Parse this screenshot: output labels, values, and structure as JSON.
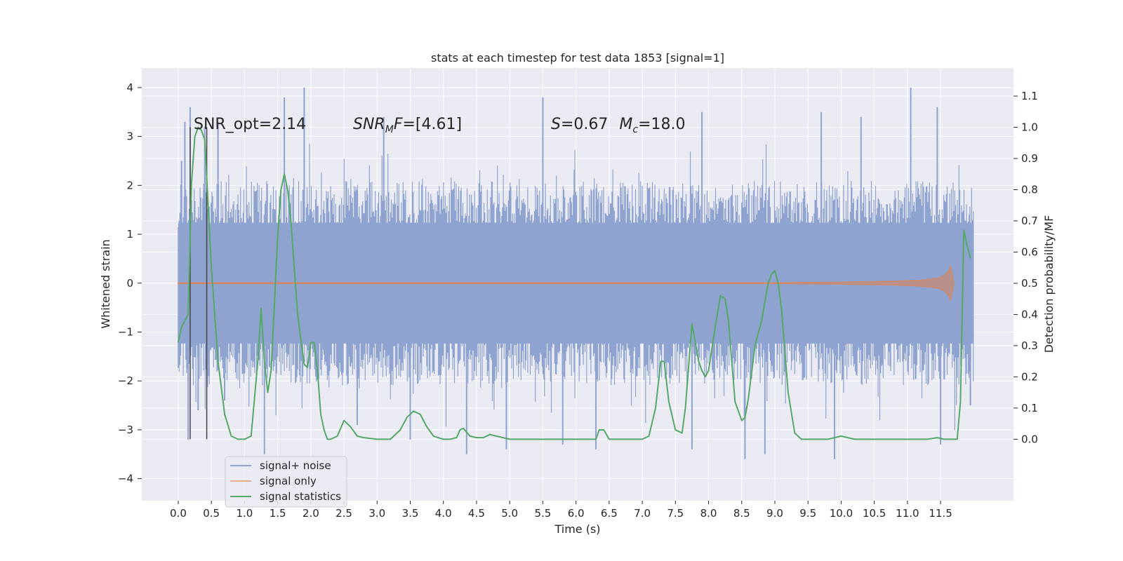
{
  "chart_data": {
    "type": "line",
    "title": "stats at each timestep for test data 1853 [signal=1]",
    "xlabel": "Time (s)",
    "ylabel_left": "Whitened strain",
    "ylabel_right": "Detection probability/MF",
    "xlim": [
      -0.55,
      12.6
    ],
    "ylim_left": [
      -4.45,
      4.4
    ],
    "ylim_right": [
      -0.197,
      1.19
    ],
    "x_ticks": [
      "0.0",
      "0.5",
      "1.0",
      "1.5",
      "2.0",
      "2.5",
      "3.0",
      "3.5",
      "4.0",
      "4.5",
      "5.0",
      "5.5",
      "6.0",
      "6.5",
      "7.0",
      "7.5",
      "8.0",
      "8.5",
      "9.0",
      "9.5",
      "10.0",
      "10.5",
      "11.0",
      "11.5"
    ],
    "y_ticks_left": [
      "4",
      "3",
      "2",
      "1",
      "0",
      "−1",
      "−2",
      "−3",
      "−4"
    ],
    "y_ticks_right": [
      "1.1",
      "1.0",
      "0.9",
      "0.8",
      "0.7",
      "0.6",
      "0.5",
      "0.4",
      "0.3",
      "0.2",
      "0.1",
      "0.0"
    ],
    "grid": true,
    "legend_placement": "lower-left",
    "annotations": {
      "snr_opt": "SNR_opt=2.14",
      "snr_mf_base": "SNR",
      "snr_mf_sub": "M",
      "snr_mf_rest": "F=[4.61]",
      "s_label": "S",
      "s_value": "=0.67",
      "mc_label": "M",
      "mc_sub": "c",
      "mc_value": "=18.0"
    },
    "vertical_markers_x": [
      0.18,
      0.43
    ],
    "series": [
      {
        "name": "signal+ noise",
        "color": "#8ea3cf",
        "x_range": [
          0.0,
          12.0
        ],
        "envelope_upper": 1.9,
        "envelope_lower": -1.9,
        "spikes": [
          [
            0.05,
            2.5
          ],
          [
            0.1,
            3.3
          ],
          [
            0.18,
            3.6
          ],
          [
            0.4,
            3.2
          ],
          [
            0.6,
            3.3
          ],
          [
            1.6,
            3.8
          ],
          [
            1.9,
            4.0
          ],
          [
            3.1,
            3.4
          ],
          [
            5.5,
            3.8
          ],
          [
            7.9,
            3.5
          ],
          [
            9.7,
            3.5
          ],
          [
            10.3,
            3.4
          ],
          [
            11.05,
            4.0
          ],
          [
            11.45,
            3.6
          ],
          [
            0.15,
            -3.2
          ],
          [
            0.3,
            -2.6
          ],
          [
            0.7,
            -2.4
          ],
          [
            1.3,
            -3.5
          ],
          [
            2.7,
            -2.9
          ],
          [
            3.5,
            -3.2
          ],
          [
            4.35,
            -3.5
          ],
          [
            4.95,
            -3.4
          ],
          [
            5.8,
            -3.3
          ],
          [
            6.3,
            -3.4
          ],
          [
            7.75,
            -3.4
          ],
          [
            8.55,
            -3.6
          ],
          [
            8.85,
            -3.5
          ],
          [
            9.9,
            -3.6
          ],
          [
            11.5,
            -3.3
          ],
          [
            11.95,
            -2.5
          ]
        ]
      },
      {
        "name": "signal only",
        "color": "#dd8452",
        "x": [
          0.0,
          9.0,
          10.0,
          10.8,
          11.2,
          11.45,
          11.55,
          11.62,
          11.65,
          11.7
        ],
        "amplitude": [
          0.01,
          0.01,
          0.02,
          0.04,
          0.06,
          0.1,
          0.15,
          0.25,
          0.35,
          0.0
        ]
      },
      {
        "name": "signal statistics",
        "color": "#55a868",
        "x": [
          0.0,
          0.05,
          0.15,
          0.2,
          0.25,
          0.3,
          0.35,
          0.4,
          0.5,
          0.6,
          0.7,
          0.8,
          0.9,
          1.0,
          1.1,
          1.2,
          1.25,
          1.3,
          1.35,
          1.4,
          1.45,
          1.5,
          1.55,
          1.6,
          1.65,
          1.7,
          1.8,
          1.9,
          1.95,
          2.0,
          2.05,
          2.1,
          2.15,
          2.2,
          2.25,
          2.3,
          2.4,
          2.5,
          2.6,
          2.7,
          2.8,
          3.0,
          3.2,
          3.35,
          3.45,
          3.55,
          3.65,
          3.75,
          3.85,
          4.0,
          4.1,
          4.2,
          4.25,
          4.3,
          4.4,
          4.5,
          4.6,
          4.7,
          4.8,
          4.9,
          5.0,
          5.5,
          6.0,
          6.3,
          6.35,
          6.42,
          6.5,
          6.6,
          7.0,
          7.1,
          7.2,
          7.28,
          7.33,
          7.4,
          7.5,
          7.6,
          7.65,
          7.75,
          7.85,
          7.9,
          7.95,
          8.0,
          8.1,
          8.18,
          8.25,
          8.3,
          8.4,
          8.5,
          8.55,
          8.6,
          8.7,
          8.8,
          8.9,
          8.95,
          9.0,
          9.05,
          9.1,
          9.2,
          9.3,
          9.4,
          9.5,
          9.8,
          9.9,
          10.0,
          10.2,
          11.0,
          11.3,
          11.45,
          11.55,
          11.75,
          11.8,
          11.85,
          11.9,
          11.95
        ],
        "y": [
          0.31,
          0.36,
          0.4,
          0.82,
          0.97,
          1.0,
          0.99,
          0.96,
          0.55,
          0.25,
          0.08,
          0.01,
          0.0,
          0.0,
          0.01,
          0.25,
          0.42,
          0.25,
          0.15,
          0.22,
          0.43,
          0.65,
          0.8,
          0.85,
          0.8,
          0.7,
          0.4,
          0.24,
          0.23,
          0.31,
          0.31,
          0.22,
          0.08,
          0.03,
          0.0,
          0.0,
          0.01,
          0.06,
          0.04,
          0.01,
          0.005,
          0.0,
          0.0,
          0.03,
          0.07,
          0.09,
          0.08,
          0.04,
          0.01,
          0.0,
          0.0,
          0.005,
          0.03,
          0.035,
          0.01,
          0.005,
          0.005,
          0.015,
          0.01,
          0.005,
          0.0,
          0.0,
          0.0,
          0.0,
          0.03,
          0.03,
          0.0,
          0.0,
          0.0,
          0.01,
          0.1,
          0.25,
          0.25,
          0.12,
          0.03,
          0.02,
          0.1,
          0.37,
          0.25,
          0.22,
          0.2,
          0.22,
          0.36,
          0.46,
          0.45,
          0.38,
          0.12,
          0.06,
          0.07,
          0.13,
          0.3,
          0.38,
          0.5,
          0.53,
          0.54,
          0.5,
          0.42,
          0.15,
          0.02,
          0.0,
          0.0,
          0.0,
          0.005,
          0.01,
          0.0,
          0.0,
          0.0,
          0.005,
          0.0,
          0.0,
          0.12,
          0.67,
          0.62,
          0.58
        ]
      }
    ]
  }
}
